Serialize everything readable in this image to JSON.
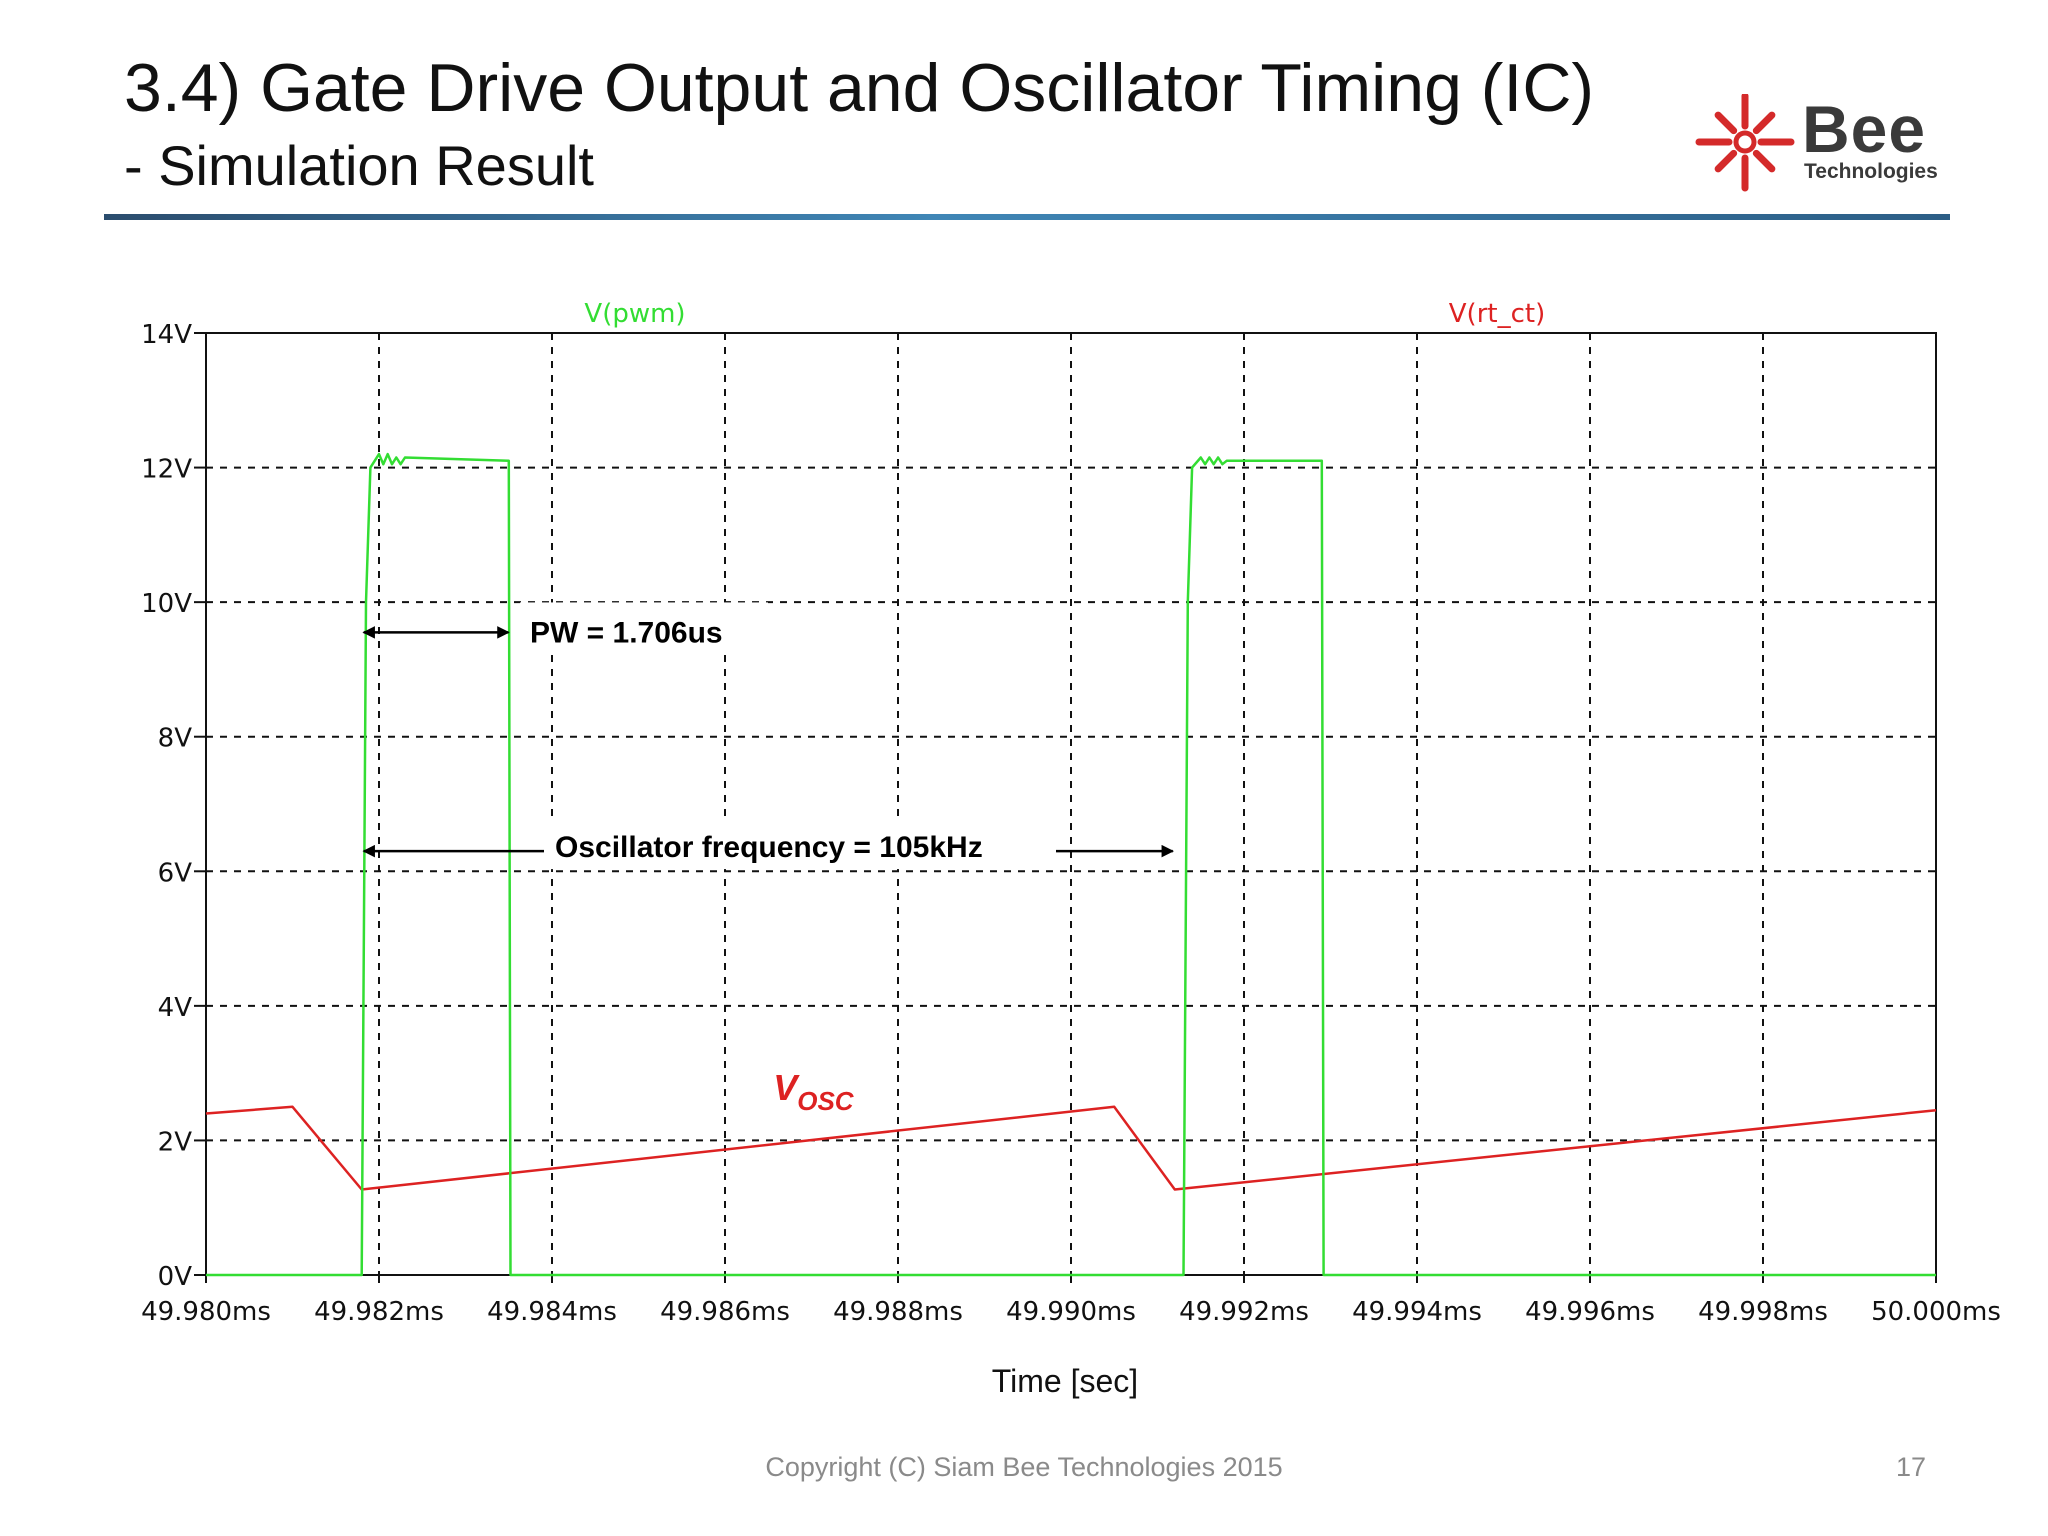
{
  "slide": {
    "title": "3.4) Gate Drive Output and Oscillator Timing (IC)",
    "subtitle": "- Simulation Result",
    "copyright": "Copyright (C) Siam Bee Technologies 2015",
    "page_number": "17"
  },
  "logo": {
    "word": "Bee",
    "sub": "Technologies",
    "mark_color": "#d42a2a",
    "text_color": "#3a3a3a"
  },
  "colors": {
    "pwm": "#33dd33",
    "rt_ct": "#dd2222",
    "grid": "#111111",
    "rule": "#2f6b9a"
  },
  "chart_data": {
    "type": "line",
    "xlabel": "Time [sec]",
    "ylabel": "",
    "xlim": [
      49.98,
      50.0
    ],
    "ylim": [
      0,
      14
    ],
    "x_unit": "ms",
    "grid": true,
    "grid_style": "dashed",
    "x_ticks": [
      "49.980ms",
      "49.982ms",
      "49.984ms",
      "49.986ms",
      "49.988ms",
      "49.990ms",
      "49.992ms",
      "49.994ms",
      "49.996ms",
      "49.998ms",
      "50.000ms"
    ],
    "y_ticks": [
      "0V",
      "2V",
      "4V",
      "6V",
      "8V",
      "10V",
      "12V",
      "14V"
    ],
    "y_tick_values": [
      0,
      2,
      4,
      6,
      8,
      10,
      12,
      14
    ],
    "series": [
      {
        "name": "V(pwm)",
        "color": "#33dd33",
        "x": [
          49.98,
          49.9818,
          49.98185,
          49.9819,
          49.982,
          49.98205,
          49.9821,
          49.98215,
          49.9822,
          49.98225,
          49.9823,
          49.9835,
          49.98352,
          49.9913,
          49.99135,
          49.9914,
          49.9915,
          49.99155,
          49.9916,
          49.99165,
          49.9917,
          49.99175,
          49.9918,
          49.9929,
          49.99292,
          50.0
        ],
        "y": [
          0,
          0,
          10.0,
          12.0,
          12.2,
          12.05,
          12.2,
          12.05,
          12.15,
          12.05,
          12.15,
          12.1,
          0,
          0,
          10.0,
          12.0,
          12.15,
          12.05,
          12.15,
          12.05,
          12.15,
          12.05,
          12.1,
          12.1,
          0,
          0
        ]
      },
      {
        "name": "V(rt_ct)",
        "color": "#dd2222",
        "x": [
          49.98,
          49.981,
          49.9818,
          49.9905,
          49.9912,
          50.0
        ],
        "y": [
          2.4,
          2.5,
          1.27,
          2.5,
          1.27,
          2.45
        ]
      }
    ],
    "annotations": [
      {
        "text": "PW = 1.706us",
        "type": "double-arrow",
        "x_start": 49.9818,
        "x_end": 49.98352,
        "y": 9.55
      },
      {
        "text": "Oscillator frequency = 105kHz",
        "type": "double-arrow",
        "x_start": 49.9818,
        "x_end": 49.9912,
        "y": 6.3
      },
      {
        "text": "V",
        "sub": "OSC",
        "type": "label",
        "x": 49.98665,
        "y": 2.6
      }
    ]
  }
}
